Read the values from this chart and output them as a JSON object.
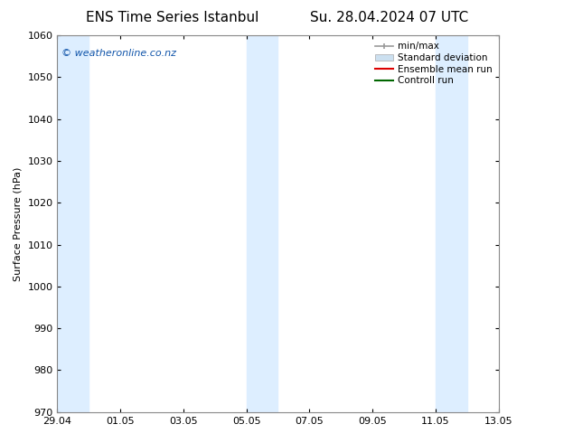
{
  "title_left": "ENS Time Series Istanbul",
  "title_right": "Su. 28.04.2024 07 UTC",
  "ylabel": "Surface Pressure (hPa)",
  "ylim": [
    970,
    1060
  ],
  "yticks": [
    970,
    980,
    990,
    1000,
    1010,
    1020,
    1030,
    1040,
    1050,
    1060
  ],
  "xlim_start": 0,
  "xlim_end": 336,
  "xtick_labels": [
    "29.04",
    "01.05",
    "03.05",
    "05.05",
    "07.05",
    "09.05",
    "11.05",
    "13.05"
  ],
  "xtick_positions": [
    0,
    48,
    96,
    144,
    192,
    240,
    288,
    336
  ],
  "shade_bands": [
    {
      "start": 0,
      "end": 24
    },
    {
      "start": 144,
      "end": 168
    },
    {
      "start": 288,
      "end": 312
    }
  ],
  "shade_color": "#ddeeff",
  "background_color": "#ffffff",
  "watermark_text": "© weatheronline.co.nz",
  "watermark_color": "#1155aa",
  "legend_labels": [
    "min/max",
    "Standard deviation",
    "Ensemble mean run",
    "Controll run"
  ],
  "title_fontsize": 11,
  "axis_fontsize": 8,
  "tick_fontsize": 8,
  "watermark_fontsize": 8,
  "legend_fontsize": 7.5
}
